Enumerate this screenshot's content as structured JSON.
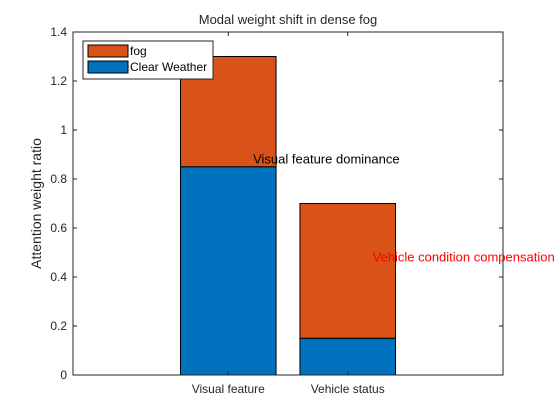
{
  "chart_data": {
    "type": "bar",
    "stacked": true,
    "title": "Modal weight shift in dense fog",
    "xlabel": "",
    "ylabel": "Attention weight ratio",
    "categories": [
      "Visual feature",
      "Vehicle status"
    ],
    "ylim": [
      0,
      1.4
    ],
    "yticks": [
      0,
      0.2,
      0.4,
      0.6,
      0.8,
      1,
      1.2,
      1.4
    ],
    "ytick_labels": [
      "0",
      "0.2",
      "0.4",
      "0.6",
      "0.8",
      "1",
      "1.2",
      "1.4"
    ],
    "grid": false,
    "legend_position": "top-left",
    "series": [
      {
        "name": "Clear Weather",
        "values": [
          0.85,
          0.15
        ],
        "color": "#0072BD"
      },
      {
        "name": "fog",
        "values": [
          0.45,
          0.55
        ],
        "color": "#D95319"
      }
    ],
    "legend_order": [
      "fog",
      "Clear Weather"
    ],
    "annotations": [
      {
        "text": "Visual feature dominance",
        "x": "Visual feature",
        "y": 0.88,
        "color": "#000000"
      },
      {
        "text": "Vehicle condition compensation",
        "x": "Vehicle status",
        "y": 0.48,
        "color": "#FF0000"
      }
    ]
  }
}
